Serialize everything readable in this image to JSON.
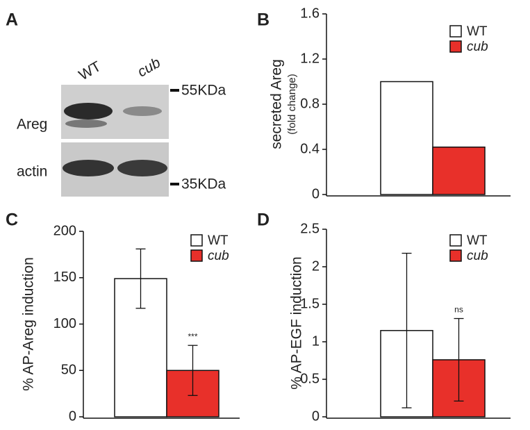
{
  "blot": {
    "panel": "A",
    "lanes": [
      "WT",
      "cub"
    ],
    "rows": [
      "Areg",
      "actin"
    ],
    "markers": [
      "55KDa",
      "35KDa"
    ]
  },
  "chart_data": [
    {
      "type": "bar",
      "panel": "B",
      "ylabel": [
        "secreted Areg",
        "(fold change)"
      ],
      "ylim": [
        0,
        1.6
      ],
      "yticks": [
        0,
        0.4,
        0.8,
        1.2,
        1.6
      ],
      "series": [
        {
          "name": "WT",
          "color": "#ffffff",
          "values": [
            1.0
          ]
        },
        {
          "name": "cub",
          "color": "#e8302a",
          "values": [
            0.42
          ]
        }
      ]
    },
    {
      "type": "bar",
      "panel": "C",
      "ylabel": [
        "% AP-Areg induction"
      ],
      "ylim": [
        0,
        200
      ],
      "yticks": [
        0,
        50,
        100,
        150,
        200
      ],
      "series": [
        {
          "name": "WT",
          "color": "#ffffff",
          "values": [
            149
          ],
          "errors": [
            32
          ]
        },
        {
          "name": "cub",
          "color": "#e8302a",
          "values": [
            50
          ],
          "errors": [
            27
          ],
          "annotation": "***"
        }
      ]
    },
    {
      "type": "bar",
      "panel": "D",
      "ylabel": [
        "% AP-EGF induction"
      ],
      "ylim": [
        0,
        2.5
      ],
      "yticks": [
        0,
        0.5,
        1,
        1.5,
        2,
        2.5
      ],
      "series": [
        {
          "name": "WT",
          "color": "#ffffff",
          "values": [
            1.15
          ],
          "errors": [
            1.03
          ]
        },
        {
          "name": "cub",
          "color": "#e8302a",
          "values": [
            0.76
          ],
          "errors": [
            0.55
          ],
          "annotation": "ns"
        }
      ]
    }
  ]
}
